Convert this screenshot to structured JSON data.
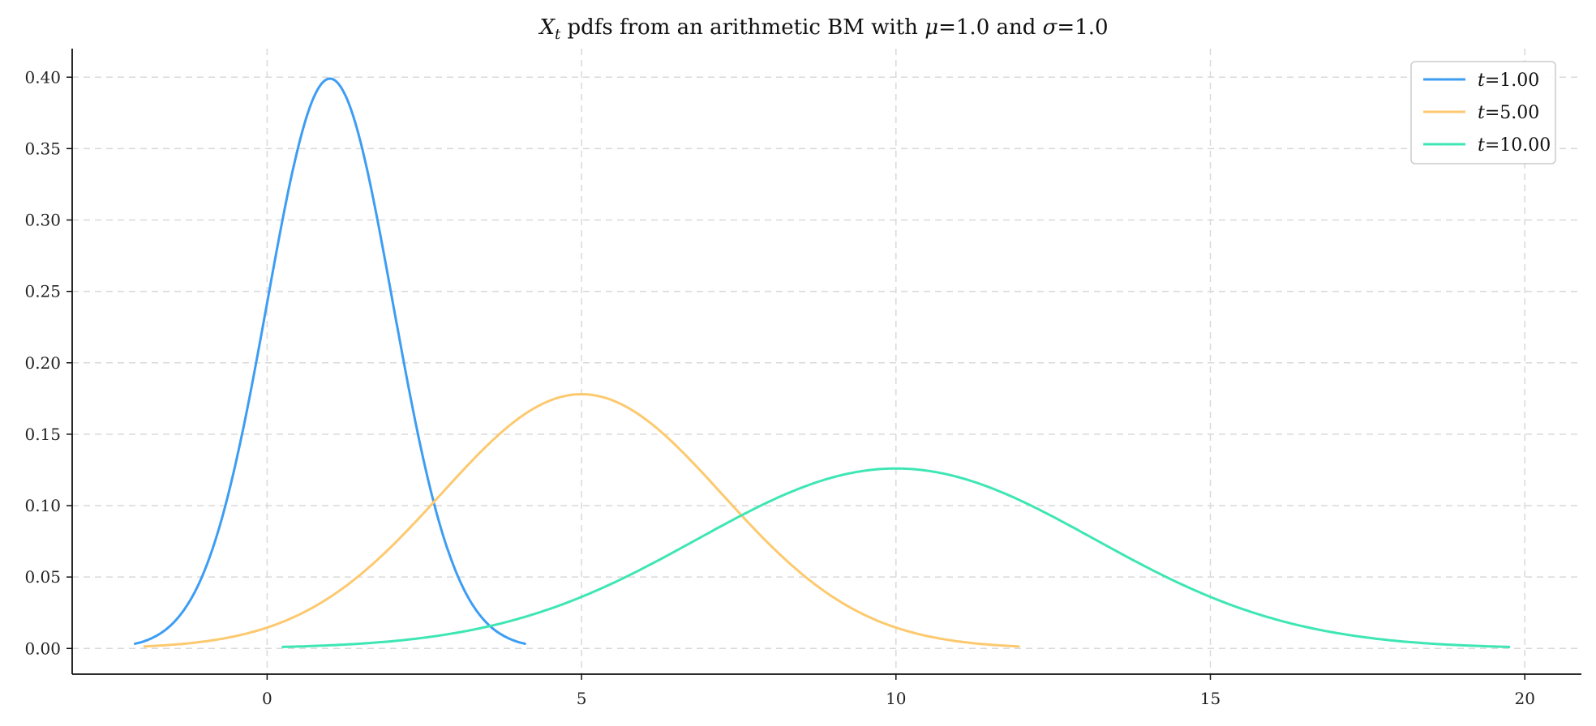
{
  "chart_data": {
    "type": "line",
    "title": {
      "main": "X",
      "sub": "t",
      "mid1": " pdfs from an arithmetic BM with ",
      "mu": "μ",
      "eq1": "=1.0 and ",
      "sigma": "σ",
      "eq2": "=1.0"
    },
    "xlabel": "",
    "ylabel": "",
    "xlim": [
      -3.1,
      20.9
    ],
    "ylim": [
      -0.018,
      0.42
    ],
    "xticks": [
      0,
      5,
      10,
      15,
      20
    ],
    "xtick_labels": [
      "0",
      "5",
      "10",
      "15",
      "20"
    ],
    "yticks": [
      0.0,
      0.05,
      0.1,
      0.15,
      0.2,
      0.25,
      0.3,
      0.35,
      0.4
    ],
    "ytick_labels": [
      "0.00",
      "0.05",
      "0.10",
      "0.15",
      "0.20",
      "0.25",
      "0.30",
      "0.35",
      "0.40"
    ],
    "grid": true,
    "legend_position": "top-right",
    "series": [
      {
        "name_var": "t",
        "name_val": "=1.00",
        "mu": 1,
        "sigma": 1.0,
        "x_range": [
          -2.1,
          4.1
        ],
        "peak": 0.399,
        "color": "#3d9df3"
      },
      {
        "name_var": "t",
        "name_val": "=5.00",
        "mu": 5,
        "sigma": 2.236,
        "x_range": [
          -1.95,
          11.95
        ],
        "peak": 0.178,
        "color": "#fdc96f"
      },
      {
        "name_var": "t",
        "name_val": "=10.00",
        "mu": 10,
        "sigma": 3.162,
        "x_range": [
          0.25,
          19.75
        ],
        "peak": 0.126,
        "color": "#3ee6b4"
      }
    ]
  }
}
